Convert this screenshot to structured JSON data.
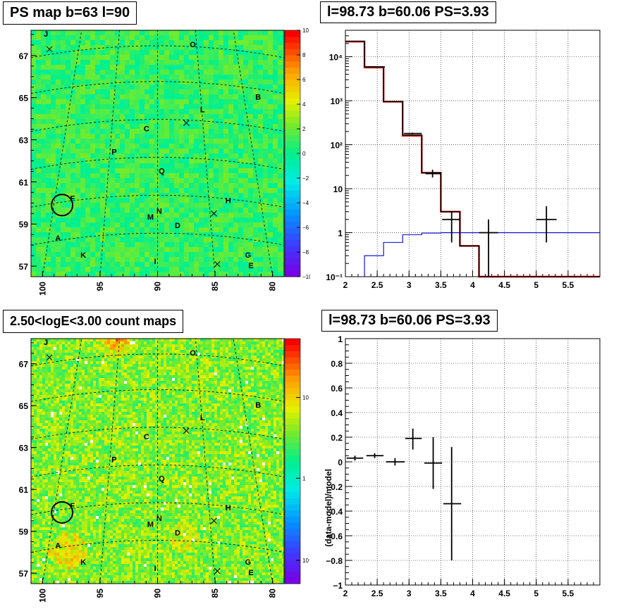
{
  "panels": {
    "ps_map": {
      "title": "PS map b=63 l=90",
      "x_ticks": [
        "100",
        "95",
        "90",
        "85",
        "80"
      ],
      "y_ticks": [
        "67",
        "65",
        "63",
        "61",
        "59",
        "57"
      ],
      "colorbar_ticks": [
        "10",
        "8",
        "6",
        "4",
        "2",
        "0",
        "−2",
        "−4",
        "−6",
        "−8",
        "−10"
      ]
    },
    "count_map": {
      "title": "2.50<logE<3.00 count maps",
      "x_ticks": [
        "100",
        "95",
        "90",
        "85",
        "80"
      ],
      "y_ticks": [
        "67",
        "65",
        "63",
        "61",
        "59",
        "57"
      ],
      "colorbar_ticks": [
        "10",
        "1",
        "10⁻¹"
      ]
    },
    "spectrum": {
      "title": "l=98.73 b=60.06 PS=3.93"
    },
    "residual": {
      "title": "l=98.73 b=60.06 PS=3.93",
      "ylabel": "(data-model)/model"
    }
  },
  "map_sources": [
    {
      "name": "J"
    },
    {
      "name": "O"
    },
    {
      "name": "B"
    },
    {
      "name": "L"
    },
    {
      "name": "C"
    },
    {
      "name": "P"
    },
    {
      "name": "Q"
    },
    {
      "name": "F"
    },
    {
      "name": "H"
    },
    {
      "name": "N"
    },
    {
      "name": "M"
    },
    {
      "name": "D"
    },
    {
      "name": "A"
    },
    {
      "name": "K"
    },
    {
      "name": "I"
    },
    {
      "name": "G"
    },
    {
      "name": "E"
    }
  ],
  "chart_data": [
    {
      "type": "heatmap",
      "name": "ps_map",
      "title": "PS map b=63 l=90",
      "xlim": [
        101,
        79
      ],
      "ylim": [
        56.5,
        68.2
      ],
      "colorbar_range": [
        -10,
        10
      ],
      "colorscale": "rainbow",
      "circle_marker": {
        "l": 98.3,
        "b": 59.9
      }
    },
    {
      "type": "heatmap",
      "name": "count_map",
      "title": "2.50<logE<3.00 count maps",
      "xlim": [
        101,
        79
      ],
      "ylim": [
        56.5,
        68.2
      ],
      "colorbar_scale": "log",
      "colorscale": "rainbow",
      "circle_marker": {
        "l": 98.3,
        "b": 59.9
      }
    },
    {
      "type": "line",
      "name": "spectrum",
      "title": "l=98.73 b=60.06 PS=3.93",
      "xlim": [
        2,
        6
      ],
      "ylim": [
        0.1,
        40000
      ],
      "yscale": "log",
      "grid": true,
      "x_ticks": [
        2,
        2.5,
        3,
        3.5,
        4,
        4.5,
        5,
        5.5
      ],
      "y_ticks": [
        {
          "value": 0.1,
          "label": "10⁻¹"
        },
        {
          "value": 1,
          "label": "1"
        },
        {
          "value": 10,
          "label": "10"
        },
        {
          "value": 100,
          "label": "10²"
        },
        {
          "value": 1000,
          "label": "10³"
        },
        {
          "value": 10000,
          "label": "10⁴"
        }
      ],
      "series": [
        {
          "color": "#ff0000",
          "bins": [
            [
              2.0,
              2.3,
              22000
            ],
            [
              2.3,
              2.6,
              5700
            ],
            [
              2.6,
              2.9,
              950
            ],
            [
              2.9,
              3.2,
              160
            ],
            [
              3.2,
              3.5,
              23
            ],
            [
              3.5,
              3.8,
              3.0
            ],
            [
              3.8,
              4.1,
              0.5
            ],
            [
              4.1,
              4.4,
              0.1
            ],
            [
              4.4,
              6.0,
              0.1
            ]
          ]
        },
        {
          "color": "#000000",
          "bins": [
            [
              2.0,
              2.3,
              22500
            ],
            [
              2.3,
              2.6,
              5900
            ],
            [
              2.6,
              2.9,
              950
            ],
            [
              2.9,
              3.2,
              165
            ],
            [
              3.2,
              3.5,
              23
            ],
            [
              3.5,
              3.8,
              3.0
            ],
            [
              3.8,
              4.1,
              0.5
            ],
            [
              4.1,
              4.4,
              0.1
            ],
            [
              4.4,
              6.0,
              0.1
            ]
          ]
        },
        {
          "color": "#0000cc",
          "bins": [
            [
              2.3,
              2.6,
              0.3
            ],
            [
              2.6,
              2.9,
              0.6
            ],
            [
              2.9,
              3.2,
              0.9
            ],
            [
              3.2,
              3.5,
              0.98
            ],
            [
              3.5,
              3.8,
              1.0
            ],
            [
              3.8,
              6.0,
              1.0
            ]
          ]
        }
      ],
      "points": [
        {
          "x": 2.48,
          "y": 5850,
          "xlo": 2.33,
          "xhi": 2.62,
          "ylo": 5800,
          "yhi": 5900
        },
        {
          "x": 3.05,
          "y": 180,
          "xlo": 2.92,
          "xhi": 3.2,
          "ylo": 172,
          "yhi": 188
        },
        {
          "x": 3.37,
          "y": 22,
          "xlo": 3.26,
          "xhi": 3.5,
          "ylo": 18,
          "yhi": 27
        },
        {
          "x": 3.67,
          "y": 2.0,
          "xlo": 3.52,
          "xhi": 3.8,
          "ylo": 0.6,
          "yhi": 3.0
        },
        {
          "x": 4.25,
          "y": 1.0,
          "xlo": 4.1,
          "xhi": 4.4,
          "ylo": 0.1,
          "yhi": 2.0
        },
        {
          "x": 5.16,
          "y": 2.0,
          "xlo": 5.0,
          "xhi": 5.32,
          "ylo": 0.6,
          "yhi": 4.0
        }
      ]
    },
    {
      "type": "scatter",
      "name": "residual",
      "title": "l=98.73 b=60.06 PS=3.93",
      "ylabel": "(data-model)/model",
      "xlim": [
        2,
        6
      ],
      "ylim": [
        -1,
        1
      ],
      "grid": true,
      "x_ticks": [
        2,
        2.5,
        3,
        3.5,
        4,
        4.5,
        5,
        5.5
      ],
      "y_ticks": [
        -1,
        -0.8,
        -0.6,
        -0.4,
        -0.2,
        0,
        0.2,
        0.4,
        0.6,
        0.8,
        1
      ],
      "points": [
        {
          "x": 2.15,
          "y": 0.03,
          "xlo": 2.02,
          "xhi": 2.28,
          "ylo": 0.01,
          "yhi": 0.05
        },
        {
          "x": 2.46,
          "y": 0.05,
          "xlo": 2.33,
          "xhi": 2.6,
          "ylo": 0.03,
          "yhi": 0.07
        },
        {
          "x": 2.78,
          "y": 0.0,
          "xlo": 2.64,
          "xhi": 2.93,
          "ylo": -0.03,
          "yhi": 0.03
        },
        {
          "x": 3.06,
          "y": 0.19,
          "xlo": 2.94,
          "xhi": 3.2,
          "ylo": 0.1,
          "yhi": 0.27
        },
        {
          "x": 3.38,
          "y": -0.01,
          "xlo": 3.24,
          "xhi": 3.52,
          "ylo": -0.22,
          "yhi": 0.2
        },
        {
          "x": 3.67,
          "y": -0.34,
          "xlo": 3.54,
          "xhi": 3.82,
          "ylo": -0.8,
          "yhi": 0.12
        }
      ]
    }
  ]
}
